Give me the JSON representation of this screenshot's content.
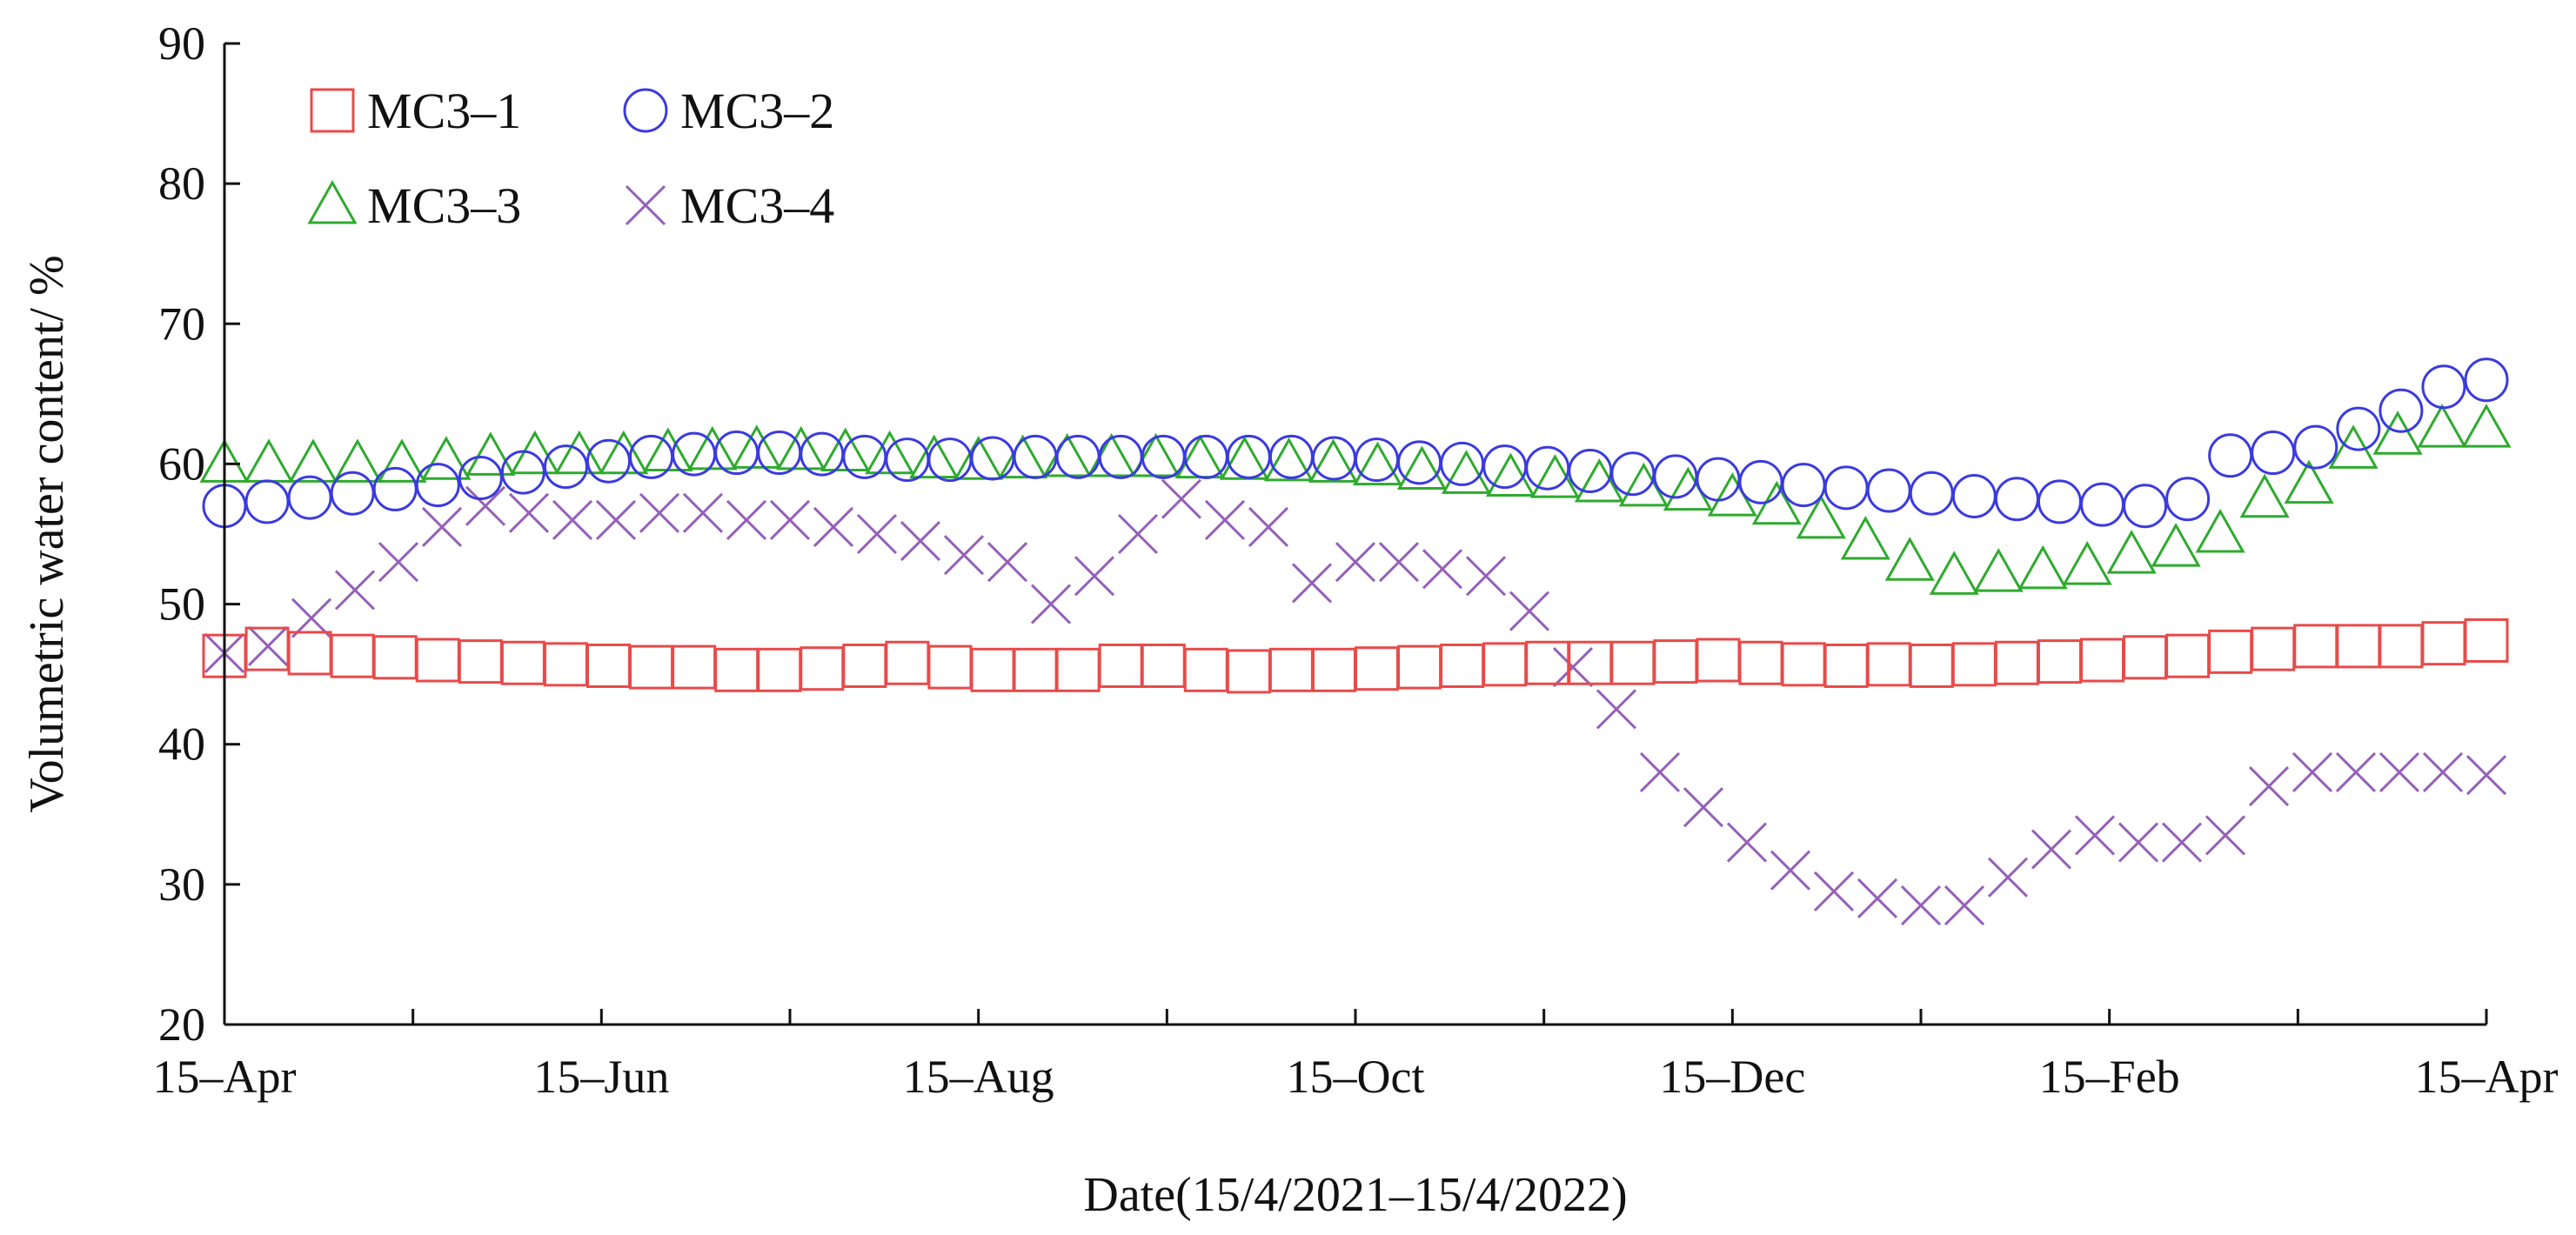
{
  "chart_data": {
    "type": "scatter",
    "title": "",
    "xlabel": "Date(15/4/2021–15/4/2022)",
    "ylabel": "Volumetric  water  content/ %",
    "ylim": [
      20,
      90
    ],
    "yticks": [
      20,
      30,
      40,
      50,
      60,
      70,
      80,
      90
    ],
    "xlim": [
      0,
      12
    ],
    "xticks": [
      {
        "x": 0,
        "label": "15–Apr"
      },
      {
        "x": 2,
        "label": "15–Jun"
      },
      {
        "x": 4,
        "label": "15–Aug"
      },
      {
        "x": 6,
        "label": "15–Oct"
      },
      {
        "x": 8,
        "label": "15–Dec"
      },
      {
        "x": 10,
        "label": "15–Feb"
      },
      {
        "x": 12,
        "label": "15–Apr"
      }
    ],
    "x_unit": "months since 15-Apr-2021",
    "legend_position": "top-left",
    "grid": false,
    "series": [
      {
        "name": "MC3–1",
        "marker": "square",
        "color": "#e84a4a",
        "values": [
          46.3,
          46.8,
          46.5,
          46.3,
          46.2,
          46.0,
          45.9,
          45.8,
          45.7,
          45.6,
          45.5,
          45.5,
          45.3,
          45.3,
          45.4,
          45.6,
          45.8,
          45.5,
          45.3,
          45.3,
          45.3,
          45.6,
          45.6,
          45.3,
          45.2,
          45.3,
          45.3,
          45.4,
          45.5,
          45.6,
          45.7,
          45.8,
          45.8,
          45.8,
          45.9,
          46.0,
          45.8,
          45.7,
          45.6,
          45.7,
          45.6,
          45.7,
          45.8,
          45.9,
          46.0,
          46.2,
          46.3,
          46.6,
          46.8,
          47.0,
          47.0,
          47.0,
          47.2,
          47.4
        ]
      },
      {
        "name": "MC3–2",
        "marker": "circle",
        "color": "#3a3ae0",
        "values": [
          57.0,
          57.3,
          57.6,
          57.9,
          58.2,
          58.5,
          59.0,
          59.4,
          59.8,
          60.2,
          60.5,
          60.7,
          60.8,
          60.8,
          60.7,
          60.5,
          60.3,
          60.3,
          60.4,
          60.5,
          60.5,
          60.5,
          60.5,
          60.5,
          60.5,
          60.5,
          60.4,
          60.3,
          60.1,
          60.0,
          59.8,
          59.7,
          59.5,
          59.3,
          59.1,
          58.9,
          58.7,
          58.5,
          58.3,
          58.1,
          57.9,
          57.7,
          57.5,
          57.3,
          57.1,
          57.0,
          57.5,
          60.6,
          60.8,
          61.2,
          62.5,
          63.8,
          65.5,
          66.0
        ]
      },
      {
        "name": "MC3–3",
        "marker": "triangle",
        "color": "#2eaa2e",
        "values": [
          60.0,
          60.0,
          60.0,
          60.0,
          60.0,
          60.2,
          60.5,
          60.6,
          60.6,
          60.6,
          60.8,
          60.9,
          61.0,
          60.9,
          60.8,
          60.6,
          60.3,
          60.2,
          60.3,
          60.4,
          60.4,
          60.4,
          60.3,
          60.2,
          60.1,
          60.0,
          59.8,
          59.5,
          59.2,
          59.0,
          58.9,
          58.6,
          58.3,
          58.0,
          57.6,
          57.0,
          56.0,
          54.5,
          53.0,
          52.0,
          52.2,
          52.4,
          52.7,
          53.5,
          54.0,
          55.0,
          57.5,
          58.5,
          61.0,
          62.0,
          62.5,
          62.5
        ]
      },
      {
        "name": "MC3–4",
        "marker": "x",
        "color": "#9560b8",
        "values": [
          46.5,
          47.0,
          49.0,
          51.0,
          53.0,
          55.5,
          57.0,
          56.5,
          56.0,
          56.0,
          56.5,
          56.5,
          56.0,
          56.0,
          55.5,
          55.0,
          54.5,
          53.5,
          53.0,
          50.0,
          52.0,
          55.0,
          57.5,
          56.0,
          55.5,
          51.5,
          53.0,
          53.0,
          52.5,
          52.0,
          49.5,
          45.5,
          42.5,
          38.0,
          35.5,
          33.0,
          31.0,
          29.5,
          29.0,
          28.5,
          28.5,
          30.5,
          32.5,
          33.5,
          33.0,
          33.0,
          33.5,
          37.0,
          38.0,
          38.0,
          38.0,
          38.0,
          37.8
        ]
      }
    ]
  }
}
